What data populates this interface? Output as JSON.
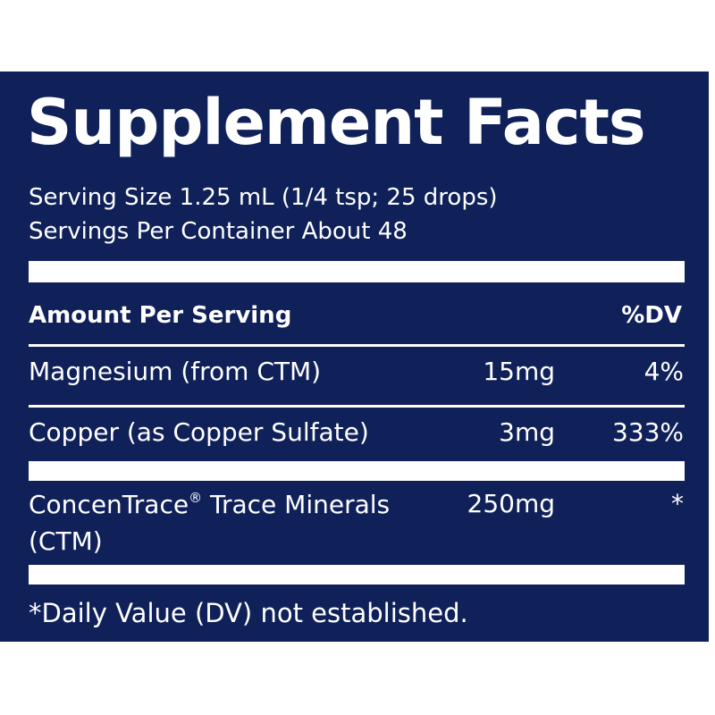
{
  "label": {
    "title": "Supplement Facts",
    "serving_size": "Serving Size 1.25 mL (1/4 tsp; 25 drops)",
    "servings_per_container": "Servings Per Container About 48",
    "header_left": "Amount Per Serving",
    "header_right": "%DV",
    "rows": [
      {
        "name": "Magnesium (from CTM)",
        "amount": "15mg",
        "dv": "4%"
      },
      {
        "name": "Copper (as Copper Sulfate)",
        "amount": "3mg",
        "dv": "333%"
      },
      {
        "name": "ConcenTrace",
        "name_mark": "®",
        "name_rest": " Trace Minerals",
        "name_line2": "(CTM)",
        "amount": "250mg",
        "dv": "*"
      }
    ],
    "footnote": "*Daily Value (DV) not established."
  },
  "colors": {
    "background": "#10215a",
    "text": "#ffffff"
  }
}
